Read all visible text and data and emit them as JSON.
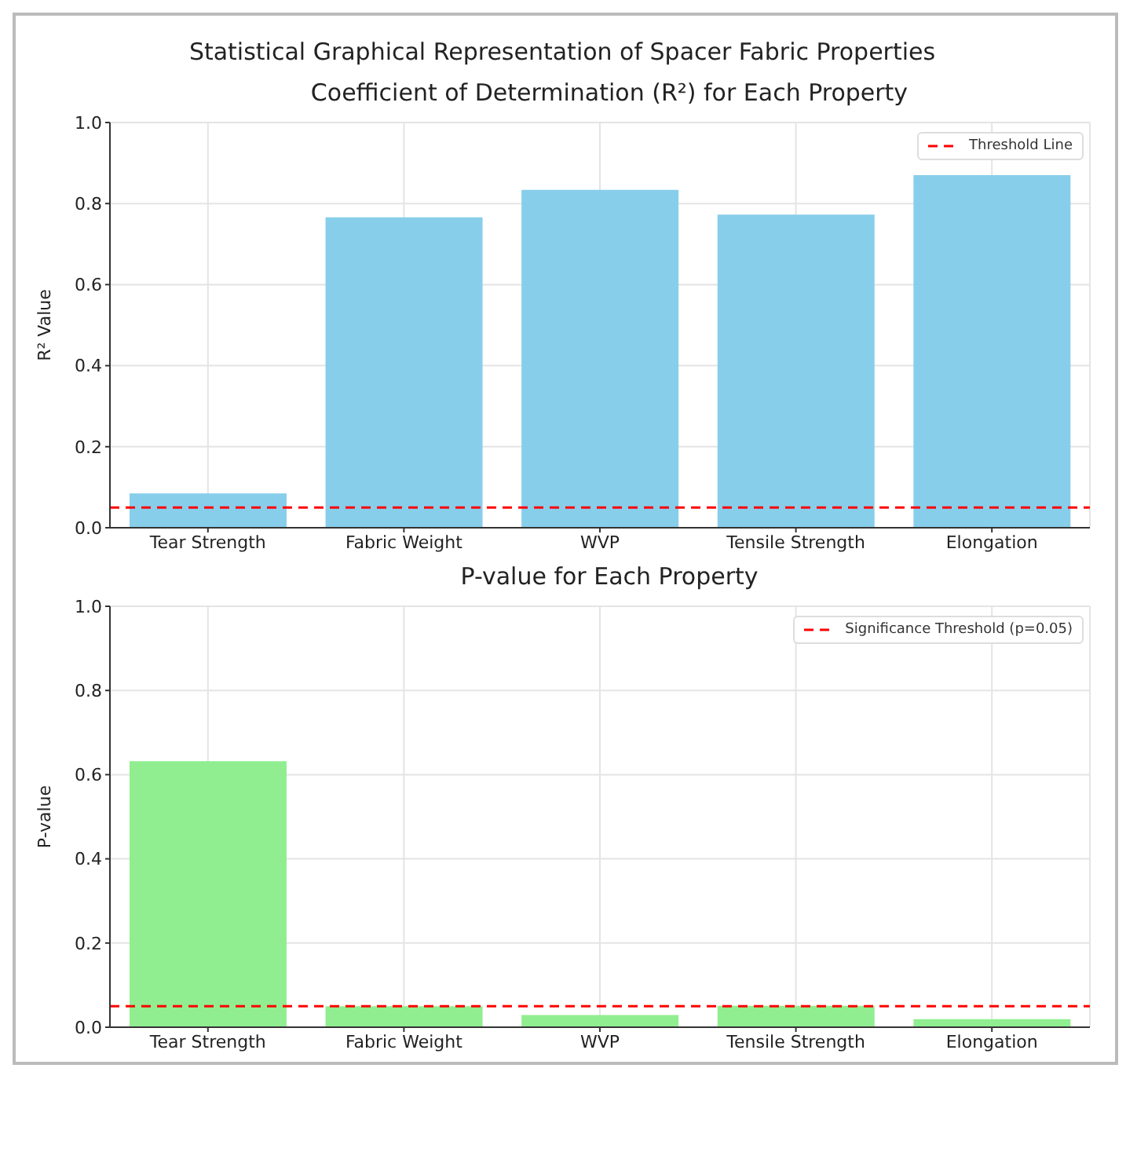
{
  "chart_data": [
    {
      "type": "bar",
      "title": "Statistical Graphical Representation of Spacer Fabric Properties",
      "subtitle": "Coefficient of Determination (R²) for Each Property",
      "ylabel": "R² Value",
      "categories": [
        "Tear Strength",
        "Fabric Weight",
        "WVP",
        "Tensile Strength",
        "Elongation"
      ],
      "values": [
        0.085,
        0.766,
        0.834,
        0.773,
        0.87
      ],
      "color": "#87ceeb",
      "ylim": [
        0,
        1
      ],
      "yticks": [
        {
          "value": 0,
          "label": "0.0"
        },
        {
          "value": 0.2,
          "label": "0.2"
        },
        {
          "value": 0.4,
          "label": "0.4"
        },
        {
          "value": 0.6,
          "label": "0.6"
        },
        {
          "value": 0.8,
          "label": "0.8"
        },
        {
          "value": 1,
          "label": "1.0"
        }
      ],
      "ref_lines": [
        {
          "axis": "y",
          "value": 0.05,
          "label": "Threshold Line",
          "color": "#ff0000",
          "line_style": "dashed"
        }
      ],
      "grid": true,
      "legend": "top right"
    },
    {
      "type": "bar",
      "title": "P-value for Each Property",
      "ylabel": "P-value",
      "categories": [
        "Tear Strength",
        "Fabric Weight",
        "WVP",
        "Tensile Strength",
        "Elongation"
      ],
      "values": [
        0.632,
        0.05,
        0.029,
        0.051,
        0.019
      ],
      "color": "#90ee90",
      "ylim": [
        0,
        1
      ],
      "yticks": [
        {
          "value": 0,
          "label": "0.0"
        },
        {
          "value": 0.2,
          "label": "0.2"
        },
        {
          "value": 0.4,
          "label": "0.4"
        },
        {
          "value": 0.6,
          "label": "0.6"
        },
        {
          "value": 0.8,
          "label": "0.8"
        },
        {
          "value": 1,
          "label": "1.0"
        }
      ],
      "ref_lines": [
        {
          "axis": "y",
          "value": 0.05,
          "label": "Significance Threshold (p=0.05)",
          "color": "#ff0000",
          "line_style": "dashed"
        }
      ],
      "grid": true,
      "legend": "top right"
    }
  ]
}
